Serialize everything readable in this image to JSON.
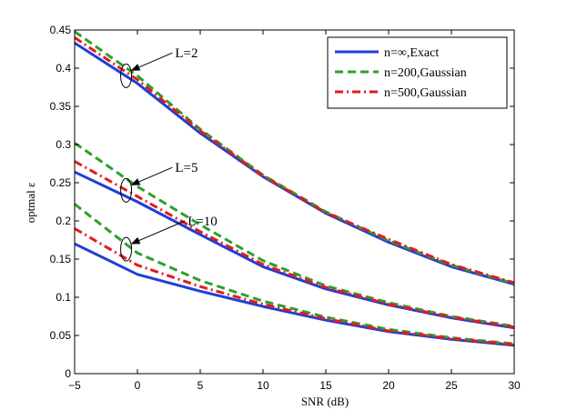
{
  "chart_data": {
    "type": "line",
    "title": "",
    "xlabel": "SNR (dB)",
    "ylabel": "optmal ε",
    "xlim": [
      -5,
      30
    ],
    "ylim": [
      0,
      0.45
    ],
    "xticks": [
      -5,
      0,
      5,
      10,
      15,
      20,
      25,
      30
    ],
    "xtick_labels": [
      "−5",
      "0",
      "5",
      "10",
      "15",
      "20",
      "25",
      "30"
    ],
    "yticks": [
      0,
      0.05,
      0.1,
      0.15,
      0.2,
      0.25,
      0.3,
      0.35,
      0.4,
      0.45
    ],
    "ytick_labels": [
      "0",
      "0.05",
      "0.1",
      "0.15",
      "0.2",
      "0.25",
      "0.3",
      "0.35",
      "0.4",
      "0.45"
    ],
    "grid": false,
    "legend_position": "top-right",
    "x": [
      -5,
      0,
      5,
      10,
      15,
      20,
      25,
      30
    ],
    "series": [
      {
        "name": "n=∞,Exact",
        "group": "L=2",
        "color": "#1f3fd6",
        "dash": "solid",
        "values": [
          0.433,
          0.38,
          0.315,
          0.258,
          0.21,
          0.172,
          0.14,
          0.117
        ]
      },
      {
        "name": "n=200,Gaussian",
        "group": "L=2",
        "color": "#2ca02c",
        "dash": "dashed",
        "values": [
          0.448,
          0.39,
          0.32,
          0.26,
          0.212,
          0.174,
          0.142,
          0.118
        ]
      },
      {
        "name": "n=500,Gaussian",
        "group": "L=2",
        "color": "#e41a1c",
        "dash": "dashdot",
        "values": [
          0.44,
          0.385,
          0.318,
          0.259,
          0.211,
          0.176,
          0.143,
          0.119
        ]
      },
      {
        "name": "n=∞,Exact",
        "group": "L=5",
        "color": "#1f3fd6",
        "dash": "solid",
        "values": [
          0.264,
          0.225,
          0.182,
          0.14,
          0.111,
          0.09,
          0.073,
          0.06
        ]
      },
      {
        "name": "n=200,Gaussian",
        "group": "L=5",
        "color": "#2ca02c",
        "dash": "dashed",
        "values": [
          0.302,
          0.245,
          0.195,
          0.148,
          0.115,
          0.093,
          0.075,
          0.062
        ]
      },
      {
        "name": "n=500,Gaussian",
        "group": "L=5",
        "color": "#e41a1c",
        "dash": "dashdot",
        "values": [
          0.278,
          0.232,
          0.186,
          0.143,
          0.113,
          0.091,
          0.074,
          0.061
        ]
      },
      {
        "name": "n=∞,Exact",
        "group": "L=10",
        "color": "#1f3fd6",
        "dash": "solid",
        "values": [
          0.17,
          0.13,
          0.108,
          0.088,
          0.07,
          0.055,
          0.045,
          0.037
        ]
      },
      {
        "name": "n=200,Gaussian",
        "group": "L=10",
        "color": "#2ca02c",
        "dash": "dashed",
        "values": [
          0.222,
          0.158,
          0.122,
          0.095,
          0.074,
          0.058,
          0.047,
          0.039
        ]
      },
      {
        "name": "n=500,Gaussian",
        "group": "L=10",
        "color": "#e41a1c",
        "dash": "dashdot",
        "values": [
          0.19,
          0.142,
          0.114,
          0.091,
          0.072,
          0.056,
          0.046,
          0.038
        ]
      }
    ],
    "legend": [
      {
        "label": "n=∞,Exact",
        "color": "#1f3fd6",
        "dash": "solid"
      },
      {
        "label": "n=200,Gaussian",
        "color": "#2ca02c",
        "dash": "dashed"
      },
      {
        "label": "n=500,Gaussian",
        "color": "#e41a1c",
        "dash": "dashdot"
      }
    ],
    "annotations": [
      {
        "text": "L=2",
        "ellipse_x": -0.9,
        "ellipse_y": 0.39,
        "label_x": 3,
        "label_y": 0.42
      },
      {
        "text": "L=5",
        "ellipse_x": -0.9,
        "ellipse_y": 0.24,
        "label_x": 3,
        "label_y": 0.27
      },
      {
        "text": "L=10",
        "ellipse_x": -0.9,
        "ellipse_y": 0.163,
        "label_x": 4,
        "label_y": 0.2
      }
    ]
  }
}
